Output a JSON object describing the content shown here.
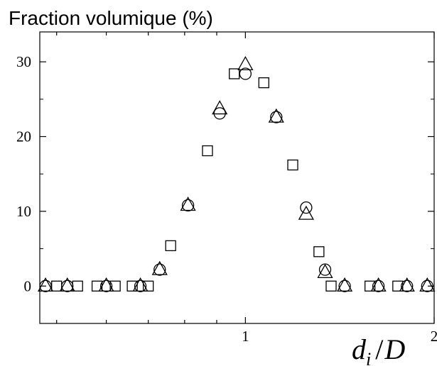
{
  "chart_data": {
    "type": "scatter",
    "title": "",
    "ylabel": "Fraction volumique (%)",
    "xlabel": {
      "d": "d",
      "sub": "i",
      "sep": "/",
      "D": "D"
    },
    "x_scale": "log",
    "xlim": [
      0.47,
      2
    ],
    "ylim": [
      -5,
      34
    ],
    "y_ticks": [
      0,
      10,
      20,
      30
    ],
    "y_tick_labels": [
      "0",
      "10",
      "20",
      "30"
    ],
    "x_tick_labels": [
      {
        "value": 1,
        "label": "1"
      },
      {
        "value": 2,
        "label": "2"
      }
    ],
    "grid": false,
    "series": [
      {
        "marker": "square",
        "points": [
          [
            0.5,
            0
          ],
          [
            0.54,
            0
          ],
          [
            0.58,
            0
          ],
          [
            0.62,
            0
          ],
          [
            0.66,
            0
          ],
          [
            0.7,
            0
          ],
          [
            0.76,
            5.4
          ],
          [
            0.87,
            18.1
          ],
          [
            0.96,
            28.4
          ],
          [
            1.07,
            27.2
          ],
          [
            1.19,
            16.2
          ],
          [
            1.31,
            4.6
          ],
          [
            1.37,
            0
          ],
          [
            1.58,
            0
          ],
          [
            1.75,
            0
          ]
        ]
      },
      {
        "marker": "circle",
        "points": [
          [
            0.48,
            0
          ],
          [
            0.52,
            0
          ],
          [
            0.6,
            0
          ],
          [
            0.68,
            0
          ],
          [
            0.73,
            2.2
          ],
          [
            0.81,
            10.8
          ],
          [
            0.91,
            23.1
          ],
          [
            1.0,
            28.4
          ],
          [
            1.12,
            22.6
          ],
          [
            1.25,
            10.5
          ],
          [
            1.34,
            2.2
          ],
          [
            1.44,
            0
          ],
          [
            1.63,
            0
          ],
          [
            1.81,
            0
          ],
          [
            1.95,
            0
          ]
        ]
      },
      {
        "marker": "triangle",
        "points": [
          [
            0.48,
            0
          ],
          [
            0.52,
            0
          ],
          [
            0.6,
            0
          ],
          [
            0.68,
            0
          ],
          [
            0.73,
            2.2
          ],
          [
            0.81,
            10.8
          ],
          [
            0.91,
            23.7
          ],
          [
            1.0,
            29.6
          ],
          [
            1.12,
            22.6
          ],
          [
            1.25,
            9.6
          ],
          [
            1.34,
            1.8
          ],
          [
            1.44,
            0
          ],
          [
            1.63,
            0
          ],
          [
            1.81,
            0
          ],
          [
            1.95,
            0
          ]
        ]
      }
    ]
  }
}
